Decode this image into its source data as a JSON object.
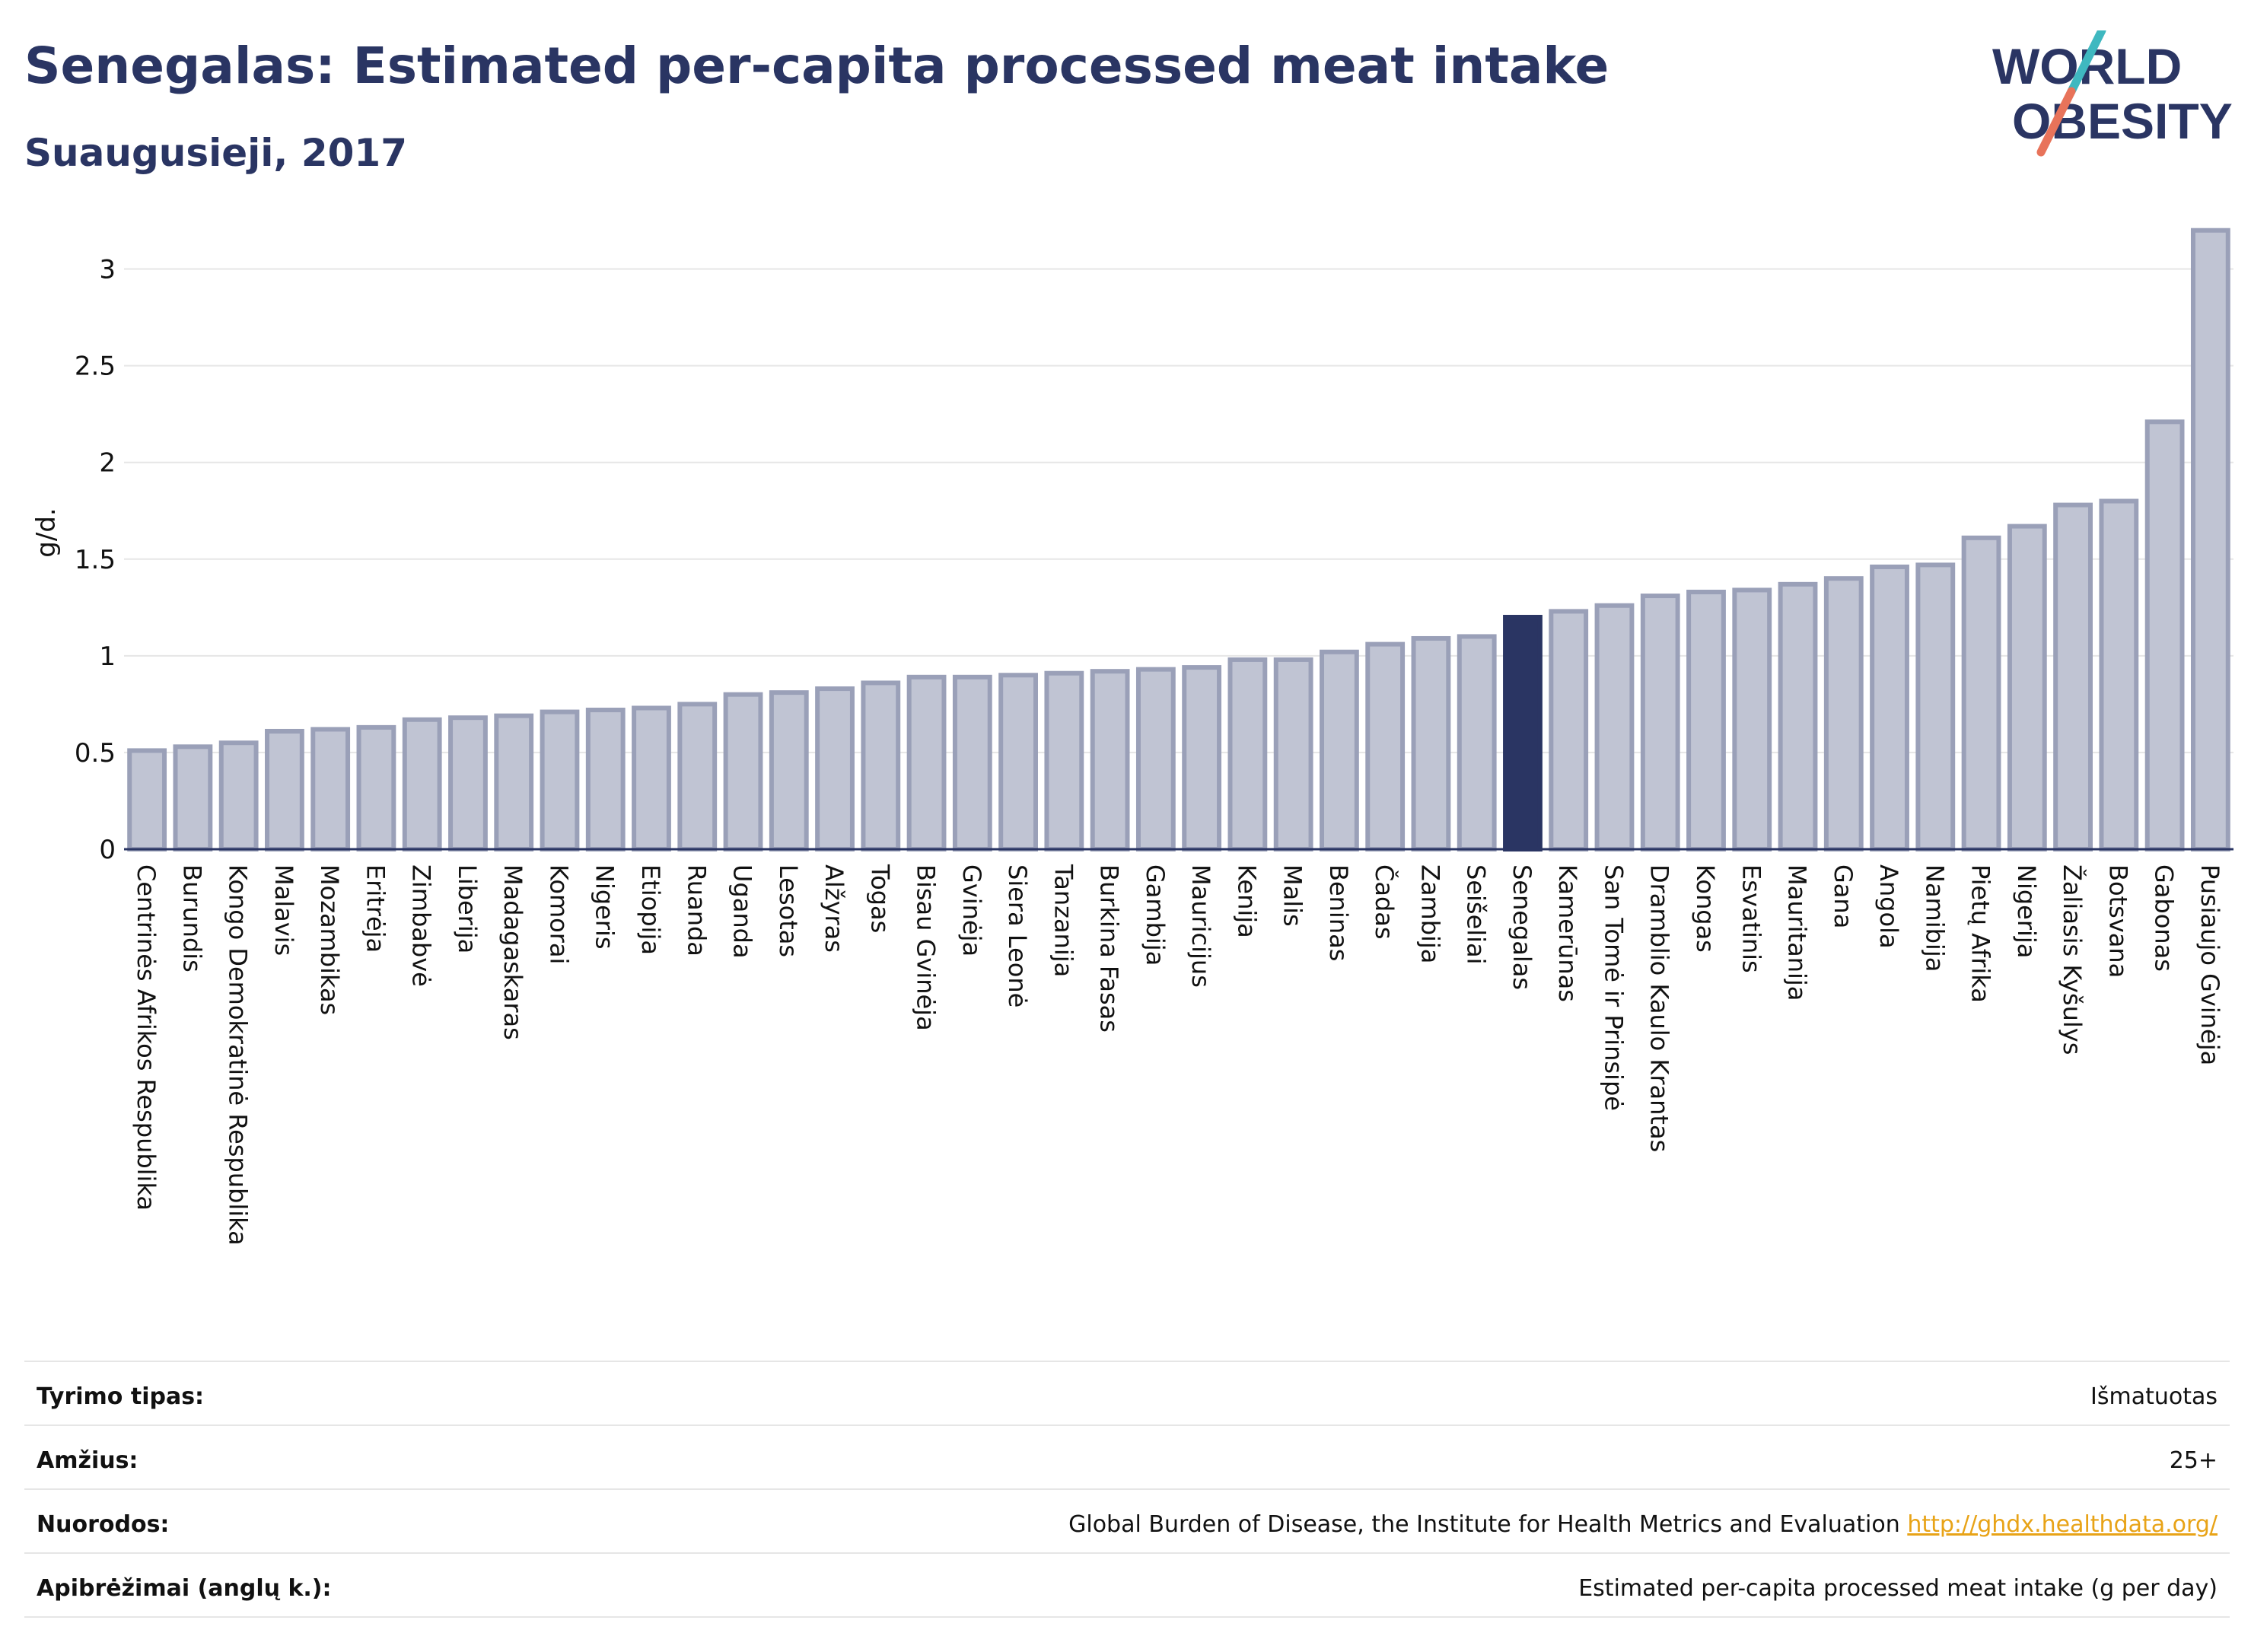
{
  "header": {
    "title": "Senegalas: Estimated per-capita processed meat intake",
    "subtitle": "Suaugusieji, 2017"
  },
  "logo": {
    "line1": "WORLD",
    "line2": "OBESITY",
    "text_color": "#2a3563",
    "slash_colors": [
      "#3fb8c0",
      "#e8735a"
    ]
  },
  "chart_data": {
    "type": "bar",
    "ylabel": "g/d.",
    "ylim": [
      0,
      3.25
    ],
    "yticks": [
      "0",
      "0.5",
      "1",
      "1.5",
      "2",
      "2.5",
      "3"
    ],
    "grid": true,
    "highlight": "Senegalas",
    "bar_color": "#c0c4d3",
    "bar_edge_color": "#9aa0b8",
    "highlight_color": "#2a3563",
    "categories": [
      "Centrinės Afrikos Respublika",
      "Burundis",
      "Kongo Demokratinė Respublika",
      "Malavis",
      "Mozambikas",
      "Eritrėja",
      "Zimbabvė",
      "Liberija",
      "Madagaskaras",
      "Komorai",
      "Nigeris",
      "Etiopija",
      "Ruanda",
      "Uganda",
      "Lesotas",
      "Alžyras",
      "Togas",
      "Bisau Gvinėja",
      "Gvinėja",
      "Siera Leonė",
      "Tanzanija",
      "Burkina Fasas",
      "Gambija",
      "Mauricijus",
      "Kenija",
      "Malis",
      "Beninas",
      "Čadas",
      "Zambija",
      "Seišeliai",
      "Senegalas",
      "Kamerūnas",
      "San Tomė ir Prinsipė",
      "Dramblio Kaulo Krantas",
      "Kongas",
      "Esvatinis",
      "Mauritanija",
      "Gana",
      "Angola",
      "Namibija",
      "Pietų Afrika",
      "Nigerija",
      "Žaliasis Kyšulys",
      "Botsvana",
      "Gabonas",
      "Pusiaujo Gvinėja"
    ],
    "values": [
      0.51,
      0.53,
      0.55,
      0.61,
      0.62,
      0.63,
      0.67,
      0.68,
      0.69,
      0.71,
      0.72,
      0.73,
      0.75,
      0.8,
      0.81,
      0.83,
      0.86,
      0.89,
      0.89,
      0.9,
      0.91,
      0.92,
      0.93,
      0.94,
      0.98,
      0.98,
      1.02,
      1.06,
      1.09,
      1.1,
      1.2,
      1.23,
      1.26,
      1.31,
      1.33,
      1.34,
      1.37,
      1.4,
      1.46,
      1.47,
      1.61,
      1.67,
      1.78,
      1.8,
      2.21,
      3.2
    ]
  },
  "info": {
    "rows": [
      {
        "label": "Tyrimo tipas:",
        "value": "Išmatuotas"
      },
      {
        "label": "Amžius:",
        "value": "25+"
      },
      {
        "label": "Nuorodos:",
        "value": "Global Burden of Disease, the Institute for Health Metrics and Evaluation",
        "link": "http://ghdx.healthdata.org/"
      },
      {
        "label": "Apibrėžimai (anglų k.):",
        "value": "Estimated per-capita processed meat intake (g per day)"
      }
    ]
  }
}
